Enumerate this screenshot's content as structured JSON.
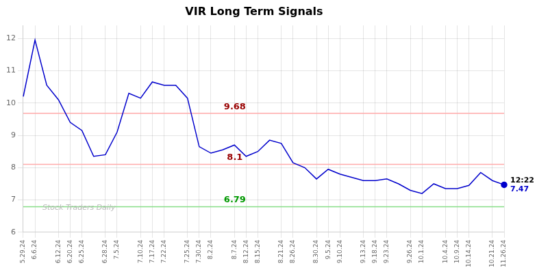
{
  "chart_data": {
    "type": "line",
    "title": "VIR Long Term Signals",
    "categories": [
      "5.29.24",
      "6.6.24",
      null,
      "6.12.24",
      "6.20.24",
      "6.25.24",
      null,
      "6.28.24",
      "7.5.24",
      null,
      "7.10.24",
      "7.17.24",
      "7.22.24",
      null,
      "7.25.24",
      "7.30.24",
      "8.2.24",
      null,
      "8.7.24",
      "8.12.24",
      "8.15.24",
      null,
      "8.21.24",
      "8.26.24",
      null,
      "8.30.24",
      "9.5.24",
      "9.10.24",
      null,
      "9.13.24",
      "9.18.24",
      "9.23.24",
      null,
      "9.26.24",
      "10.1.24",
      null,
      "10.4.24",
      "10.9.24",
      "10.14.24",
      null,
      "10.21.24",
      "11.26.24"
    ],
    "values": [
      10.2,
      11.95,
      10.55,
      10.1,
      9.4,
      9.15,
      8.35,
      8.4,
      9.1,
      10.3,
      10.15,
      10.65,
      10.55,
      10.55,
      10.15,
      8.65,
      8.45,
      8.55,
      8.7,
      8.35,
      8.5,
      8.85,
      8.75,
      8.15,
      8.0,
      7.65,
      7.95,
      7.8,
      7.7,
      7.6,
      7.6,
      7.65,
      7.5,
      7.3,
      7.2,
      7.5,
      7.35,
      7.35,
      7.45,
      7.85,
      7.6,
      7.47
    ],
    "color": "#0000cc",
    "ylim": [
      6.0,
      12.4
    ],
    "yticks": [
      6,
      7,
      8,
      9,
      10,
      11,
      12
    ],
    "grid": true,
    "reference_lines": [
      {
        "value": 9.68,
        "label": "9.68",
        "color": "#ffaaaa",
        "label_color": "#990000"
      },
      {
        "value": 8.1,
        "label": "8.1",
        "color": "#ffaaaa",
        "label_color": "#990000"
      },
      {
        "value": 6.79,
        "label": "6.79",
        "color": "#88dd88",
        "label_color": "#009900"
      }
    ],
    "last_point": {
      "label": "12:22",
      "value_label": "7.47",
      "color": "#0000cc"
    },
    "watermark": {
      "text": "Stock Traders Daily",
      "color": "#bbbbbb"
    }
  }
}
